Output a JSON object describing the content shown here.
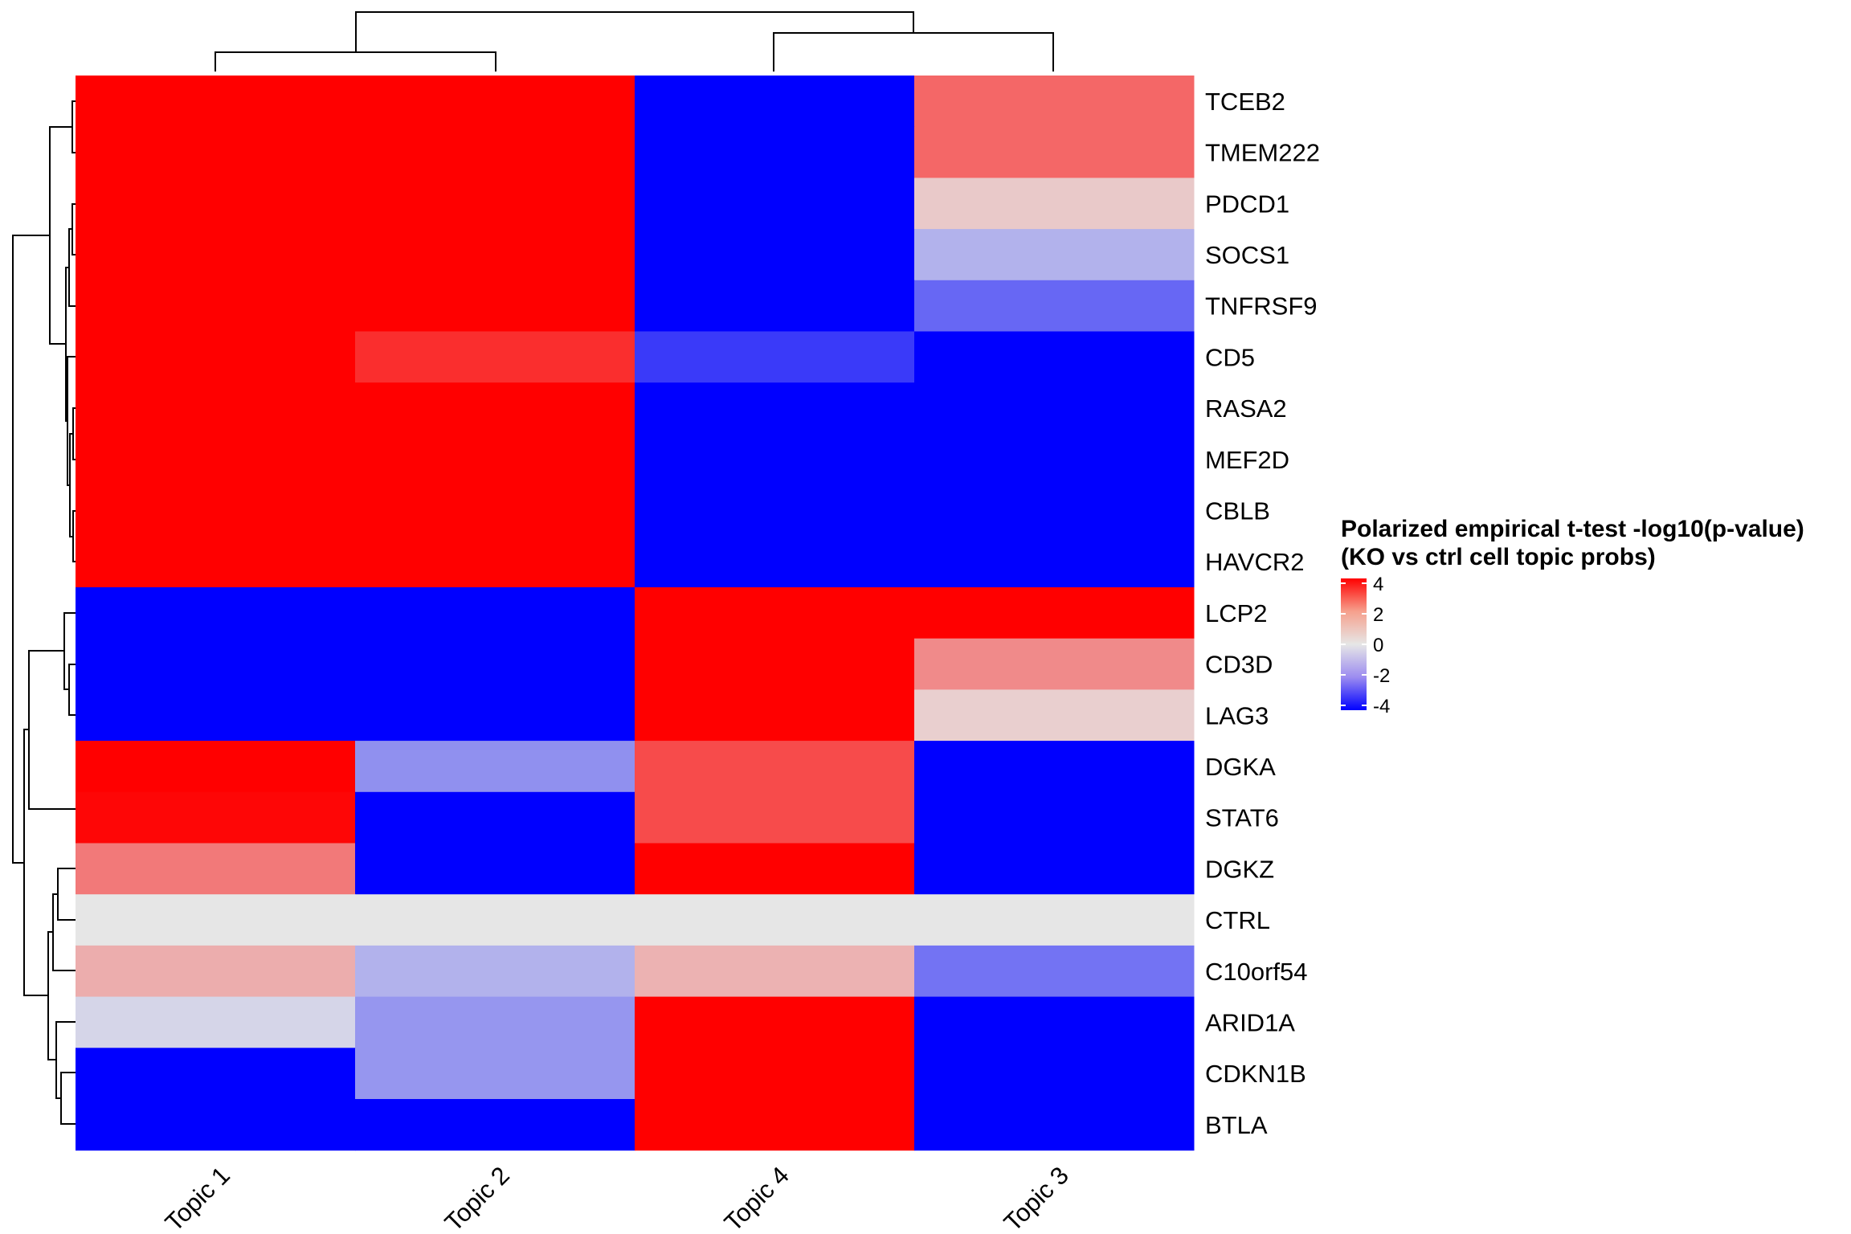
{
  "chart_data": {
    "type": "heatmap",
    "title": "",
    "columns": [
      "Topic 1",
      "Topic 2",
      "Topic 4",
      "Topic 3"
    ],
    "rows": [
      "TCEB2",
      "TMEM222",
      "PDCD1",
      "SOCS1",
      "TNFRSF9",
      "CD5",
      "RASA2",
      "MEF2D",
      "CBLB",
      "HAVCR2",
      "LCP2",
      "CD3D",
      "LAG3",
      "DGKA",
      "STAT6",
      "DGKZ",
      "CTRL",
      "C10orf54",
      "ARID1A",
      "CDKN1B",
      "BTLA"
    ],
    "values": [
      [
        5,
        5,
        -5,
        2.2
      ],
      [
        5,
        5,
        -5,
        2.2
      ],
      [
        5,
        5,
        -5,
        0.5
      ],
      [
        5,
        5,
        -5,
        -0.9
      ],
      [
        5,
        5,
        -5,
        -2.2
      ],
      [
        5,
        3.2,
        -3.0,
        -5
      ],
      [
        5,
        5,
        -5,
        -5
      ],
      [
        5,
        5,
        -5,
        -5
      ],
      [
        5,
        5,
        -5,
        -5
      ],
      [
        5,
        5,
        -5,
        -5
      ],
      [
        -5,
        -5,
        5,
        5
      ],
      [
        -5,
        -5,
        5,
        1.6
      ],
      [
        -5,
        -5,
        5,
        0.4
      ],
      [
        4.8,
        -1.5,
        2.7,
        -5
      ],
      [
        3.9,
        -5,
        2.7,
        -5
      ],
      [
        1.9,
        -5,
        5,
        -5
      ],
      [
        0,
        0,
        0,
        0
      ],
      [
        1.0,
        -0.9,
        0.9,
        -2.0
      ],
      [
        -0.3,
        -1.4,
        5,
        -5
      ],
      [
        -5,
        -1.4,
        5,
        -5
      ],
      [
        -5,
        -5,
        5,
        -5
      ]
    ],
    "color_scale": {
      "low": "#0000ff",
      "mid": "#e6e6e6",
      "high": "#ff0000",
      "min": -4,
      "max": 4
    },
    "legend": {
      "title_line1": "Polarized empirical t-test -log10(p-value)",
      "title_line2": "(KO vs ctrl cell topic probs)",
      "ticks": [
        4,
        2,
        0,
        -2,
        -4
      ],
      "tick_labels": [
        "4",
        "2",
        "0",
        "-2",
        "-4"
      ],
      "placement": "right"
    }
  }
}
